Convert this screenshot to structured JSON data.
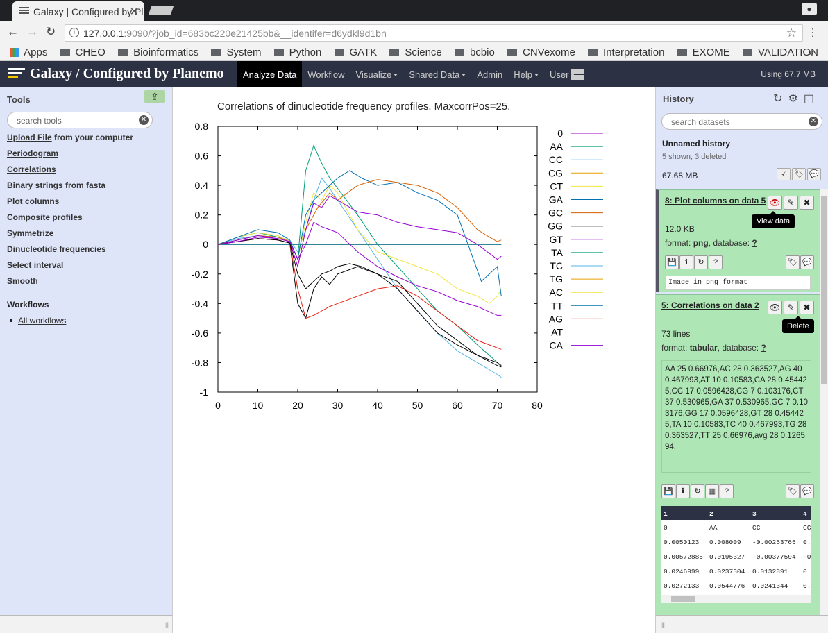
{
  "browser": {
    "tab_title": "Galaxy | Configured by Planemo",
    "url_host": "127.0.0.1",
    "url_rest": ":9090/?job_id=683bc220e21425bb&__identifer=d6ydkl9d1bn",
    "bookmarks": [
      "Apps",
      "CHEO",
      "Bioinformatics",
      "System",
      "Python",
      "GATK",
      "Science",
      "bcbio",
      "CNVexome",
      "Interpretation",
      "EXOME",
      "VALIDATION"
    ]
  },
  "masthead": {
    "brand": "Galaxy / Configured by Planemo",
    "nav": [
      "Analyze Data",
      "Workflow",
      "Visualize",
      "Shared Data",
      "Admin",
      "Help",
      "User"
    ],
    "usage": "Using 67.7 MB"
  },
  "tools": {
    "title": "Tools",
    "search_placeholder": "search tools",
    "upload_link": "Upload File",
    "upload_suffix": " from your computer",
    "items": [
      "Periodogram",
      "Correlations",
      "Binary strings from fasta",
      "Plot columns",
      "Composite profiles",
      "Symmetrize",
      "Dinucleotide frequencies",
      "Select interval",
      "Smooth"
    ],
    "workflows_title": "Workflows",
    "all_workflows": "All workflows"
  },
  "history": {
    "title": "History",
    "search_placeholder": "search datasets",
    "name": "Unnamed history",
    "shown": "5 shown, 3 ",
    "deleted": "deleted",
    "size": "67.68 MB",
    "datasets": [
      {
        "title": "8: Plot columns on data 5",
        "size": "12.0 KB",
        "format": "png",
        "database": "?",
        "peek": "Image in png format",
        "tooltip": "View data"
      },
      {
        "title": "5: Correlations on data 2",
        "size": "73 lines",
        "format": "tabular",
        "database": "?",
        "info": "AA 25 0.66976,AC 28 0.363527,AG 40 0.467993,AT 10 0.10583,CA 28 0.454425,CC 17 0.0596428,CG 7 0.103176,CT 37 0.530965,GA 37 0.530965,GC 7 0.103176,GG 17 0.0596428,GT 28 0.454425,TA 10 0.10583,TC 40 0.467993,TG 28 0.363527,TT 25 0.66976,avg 28 0.126594,",
        "tooltip": "Delete",
        "table_head": [
          "1",
          "2",
          "3",
          "4"
        ],
        "table_rows": [
          [
            "0",
            "AA",
            "CC",
            "CG"
          ],
          [
            "0.0050123",
            "0.008009",
            "-0.00263765",
            "0."
          ],
          [
            "0.00572885",
            "0.0195327",
            "-0.00377594",
            "-0"
          ],
          [
            "0.0246999",
            "0.0237304",
            "0.0132891",
            "0."
          ],
          [
            "0.0272133",
            "0.0544776",
            "0.0241344",
            "0."
          ]
        ]
      }
    ]
  },
  "labels": {
    "format": "format: ",
    "database": ", database: "
  },
  "chart_data": {
    "type": "line",
    "title": "Correlations of dinucleotide frequency profiles. MaxcorrPos=25.",
    "xlim": [
      0,
      80
    ],
    "ylim": [
      -1,
      0.8
    ],
    "xticks": [
      0,
      10,
      20,
      30,
      40,
      50,
      60,
      70,
      80
    ],
    "yticks": [
      0.8,
      0.6,
      0.4,
      0.2,
      0,
      -0.2,
      -0.4,
      -0.6,
      -0.8,
      -1
    ],
    "legend_position": "right",
    "series": [
      {
        "name": "0",
        "color": "#9400d3",
        "x": [
          0,
          71
        ],
        "y": [
          0,
          0
        ]
      },
      {
        "name": "AA",
        "color": "#009e73",
        "x": [
          0,
          5,
          10,
          15,
          18,
          20,
          22,
          24,
          26,
          28,
          30,
          35,
          40,
          45,
          50,
          55,
          60,
          65,
          68,
          70,
          71
        ],
        "y": [
          0,
          0.05,
          0.08,
          0.05,
          0.02,
          -0.1,
          0.5,
          0.67,
          0.55,
          0.45,
          0.38,
          0.2,
          0.0,
          -0.15,
          -0.3,
          -0.45,
          -0.55,
          -0.68,
          -0.75,
          -0.8,
          -0.83
        ]
      },
      {
        "name": "CC",
        "color": "#56b4e9",
        "x": [
          0,
          5,
          10,
          15,
          18,
          20,
          22,
          24,
          26,
          28,
          30,
          35,
          40,
          45,
          50,
          55,
          60,
          65,
          70,
          71
        ],
        "y": [
          0,
          0.04,
          0.06,
          0.05,
          0.03,
          -0.05,
          0.1,
          0.3,
          0.45,
          0.38,
          0.3,
          0.1,
          -0.1,
          -0.3,
          -0.45,
          -0.6,
          -0.72,
          -0.8,
          -0.88,
          -0.9
        ]
      },
      {
        "name": "CG",
        "color": "#e69f00",
        "x": [
          0,
          71
        ],
        "y": [
          0,
          0
        ]
      },
      {
        "name": "CT",
        "color": "#f0e442",
        "x": [
          0,
          5,
          10,
          15,
          18,
          20,
          22,
          24,
          26,
          28,
          30,
          35,
          40,
          45,
          50,
          55,
          60,
          65,
          68,
          70,
          71
        ],
        "y": [
          0,
          0.05,
          0.08,
          0.06,
          0.02,
          -0.1,
          0.15,
          0.35,
          0.3,
          0.4,
          0.35,
          0.1,
          -0.05,
          -0.1,
          -0.15,
          -0.2,
          -0.3,
          -0.35,
          -0.4,
          -0.35,
          -0.3
        ]
      },
      {
        "name": "GA",
        "color": "#0072b2",
        "x": [
          0,
          5,
          10,
          15,
          18,
          20,
          22,
          24,
          26,
          28,
          30,
          33,
          36,
          40,
          45,
          50,
          55,
          60,
          64,
          66,
          68,
          70,
          71
        ],
        "y": [
          0,
          0.05,
          0.1,
          0.08,
          0.03,
          -0.1,
          0.2,
          0.3,
          0.35,
          0.4,
          0.45,
          0.5,
          0.45,
          0.4,
          0.42,
          0.35,
          0.3,
          0.2,
          -0.1,
          -0.25,
          -0.2,
          -0.15,
          -0.35
        ]
      },
      {
        "name": "GC",
        "color": "#d55e00",
        "x": [
          0,
          5,
          10,
          15,
          18,
          20,
          22,
          25,
          28,
          30,
          35,
          40,
          45,
          50,
          55,
          60,
          65,
          68,
          70,
          71
        ],
        "y": [
          0,
          0.03,
          0.06,
          0.05,
          0.02,
          -0.15,
          0.1,
          0.25,
          0.35,
          0.3,
          0.4,
          0.44,
          0.42,
          0.4,
          0.35,
          0.25,
          0.1,
          0.05,
          0.02,
          0.03
        ]
      },
      {
        "name": "GG",
        "color": "#000000",
        "x": [
          0,
          5,
          10,
          15,
          18,
          20,
          22,
          24,
          26,
          28,
          30,
          35,
          40,
          45,
          50,
          55,
          60,
          65,
          70,
          71
        ],
        "y": [
          0,
          0.02,
          0.04,
          0.03,
          0.01,
          -0.4,
          -0.5,
          -0.3,
          -0.22,
          -0.27,
          -0.2,
          -0.15,
          -0.2,
          -0.3,
          -0.45,
          -0.6,
          -0.68,
          -0.75,
          -0.82,
          -0.83
        ]
      },
      {
        "name": "GT",
        "color": "#9400d3",
        "x": [
          0,
          5,
          10,
          15,
          18,
          20,
          22,
          24,
          26,
          28,
          30,
          35,
          40,
          45,
          50,
          55,
          60,
          65,
          70,
          71
        ],
        "y": [
          0,
          0.03,
          0.06,
          0.04,
          0.02,
          -0.15,
          0.1,
          0.28,
          0.25,
          0.33,
          0.3,
          0.22,
          0.2,
          0.15,
          0.12,
          0.1,
          0.08,
          0.0,
          -0.1,
          -0.08
        ]
      },
      {
        "name": "TA",
        "color": "#009e73",
        "x": [
          0,
          71
        ],
        "y": [
          0,
          0
        ]
      },
      {
        "name": "TC",
        "color": "#56b4e9",
        "x": [
          0,
          71
        ],
        "y": [
          0,
          0
        ]
      },
      {
        "name": "TG",
        "color": "#e69f00",
        "x": [
          0,
          71
        ],
        "y": [
          0,
          0
        ]
      },
      {
        "name": "AC",
        "color": "#f0e442",
        "x": [
          0,
          71
        ],
        "y": [
          0,
          0
        ]
      },
      {
        "name": "TT",
        "color": "#0072b2",
        "x": [
          0,
          71
        ],
        "y": [
          0,
          0
        ]
      },
      {
        "name": "AG",
        "color": "#e51e10",
        "x": [
          0,
          5,
          10,
          15,
          18,
          20,
          22,
          24,
          26,
          28,
          30,
          35,
          40,
          45,
          50,
          55,
          60,
          65,
          70,
          71
        ],
        "y": [
          0,
          0.02,
          0.04,
          0.03,
          0.01,
          -0.3,
          -0.5,
          -0.48,
          -0.45,
          -0.42,
          -0.4,
          -0.35,
          -0.3,
          -0.28,
          -0.35,
          -0.45,
          -0.55,
          -0.65,
          -0.7,
          -0.71
        ]
      },
      {
        "name": "AT",
        "color": "#000000",
        "x": [
          0,
          5,
          10,
          15,
          18,
          20,
          22,
          24,
          26,
          28,
          30,
          33,
          36,
          40,
          45,
          50,
          55,
          60,
          65,
          70,
          71
        ],
        "y": [
          0,
          0.02,
          0.04,
          0.03,
          0.01,
          -0.2,
          -0.3,
          -0.25,
          -0.2,
          -0.18,
          -0.15,
          -0.13,
          -0.15,
          -0.2,
          -0.25,
          -0.4,
          -0.55,
          -0.65,
          -0.75,
          -0.8,
          -0.82
        ]
      },
      {
        "name": "CA",
        "color": "#9400d3",
        "x": [
          0,
          5,
          10,
          15,
          18,
          20,
          22,
          24,
          26,
          28,
          30,
          35,
          40,
          45,
          50,
          55,
          60,
          65,
          70,
          71
        ],
        "y": [
          0,
          0.02,
          0.05,
          0.04,
          0.02,
          -0.1,
          0.0,
          0.15,
          0.12,
          0.1,
          0.08,
          -0.05,
          -0.15,
          -0.22,
          -0.28,
          -0.32,
          -0.38,
          -0.42,
          -0.48,
          -0.48
        ]
      }
    ]
  }
}
